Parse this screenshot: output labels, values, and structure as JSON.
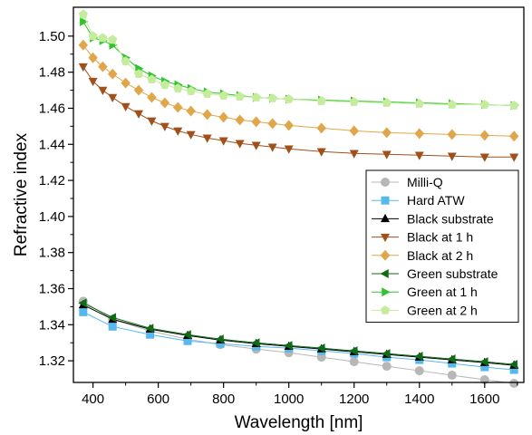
{
  "chart_data": {
    "type": "line",
    "xlabel": "Wavelength [nm]",
    "ylabel": "Refractive index",
    "xlim": [
      340,
      1720
    ],
    "ylim": [
      1.308,
      1.516
    ],
    "xticks": [
      400,
      600,
      800,
      1000,
      1200,
      1400,
      1600
    ],
    "yticks": [
      1.32,
      1.34,
      1.36,
      1.38,
      1.4,
      1.42,
      1.44,
      1.46,
      1.48,
      1.5
    ],
    "tick_format_decimals": 2,
    "legend_position": "right-center",
    "grid": false,
    "series": [
      {
        "name": "Milli-Q",
        "color": "#b7b7b7",
        "marker": "circle",
        "x": [
          370,
          460,
          575,
          690,
          790,
          900,
          1000,
          1100,
          1200,
          1300,
          1400,
          1500,
          1600,
          1690
        ],
        "values": [
          1.353,
          1.343,
          1.3365,
          1.332,
          1.329,
          1.3265,
          1.3245,
          1.322,
          1.3195,
          1.317,
          1.3145,
          1.312,
          1.3095,
          1.3075
        ]
      },
      {
        "name": "Hard ATW",
        "color": "#57b8f0",
        "marker": "square",
        "x": [
          370,
          460,
          575,
          690,
          790,
          900,
          1000,
          1100,
          1200,
          1300,
          1400,
          1500,
          1600,
          1690
        ],
        "values": [
          1.347,
          1.339,
          1.3345,
          1.331,
          1.3295,
          1.328,
          1.327,
          1.3255,
          1.324,
          1.322,
          1.3205,
          1.3185,
          1.3165,
          1.315
        ]
      },
      {
        "name": "Black substrate",
        "color": "#000000",
        "marker": "triangle-up",
        "x": [
          370,
          460,
          575,
          690,
          790,
          900,
          1000,
          1100,
          1200,
          1300,
          1400,
          1500,
          1600,
          1690
        ],
        "values": [
          1.351,
          1.343,
          1.3375,
          1.334,
          1.3315,
          1.3295,
          1.328,
          1.3265,
          1.325,
          1.3235,
          1.322,
          1.3205,
          1.319,
          1.3175
        ]
      },
      {
        "name": "Black at 1 h",
        "color": "#a0501a",
        "marker": "triangle-down",
        "x": [
          370,
          400,
          430,
          460,
          500,
          540,
          580,
          620,
          660,
          700,
          750,
          800,
          850,
          900,
          950,
          1000,
          1100,
          1200,
          1300,
          1400,
          1500,
          1600,
          1690
        ],
        "values": [
          1.483,
          1.475,
          1.47,
          1.466,
          1.461,
          1.457,
          1.453,
          1.45,
          1.4475,
          1.4455,
          1.4435,
          1.442,
          1.4405,
          1.4395,
          1.4385,
          1.4375,
          1.436,
          1.435,
          1.4345,
          1.434,
          1.4335,
          1.433,
          1.433
        ]
      },
      {
        "name": "Black at 2 h",
        "color": "#e0a64a",
        "marker": "diamond",
        "x": [
          370,
          400,
          430,
          460,
          500,
          540,
          580,
          620,
          660,
          700,
          750,
          800,
          850,
          900,
          950,
          1000,
          1100,
          1200,
          1300,
          1400,
          1500,
          1600,
          1690
        ],
        "values": [
          1.495,
          1.488,
          1.483,
          1.479,
          1.474,
          1.47,
          1.466,
          1.463,
          1.4605,
          1.4585,
          1.4565,
          1.455,
          1.4535,
          1.4525,
          1.4515,
          1.4505,
          1.449,
          1.4475,
          1.4465,
          1.446,
          1.4455,
          1.445,
          1.4445
        ]
      },
      {
        "name": "Green substrate",
        "color": "#0f6b14",
        "marker": "triangle-left",
        "x": [
          370,
          460,
          575,
          690,
          790,
          900,
          1000,
          1100,
          1200,
          1300,
          1400,
          1500,
          1600,
          1690
        ],
        "values": [
          1.352,
          1.344,
          1.338,
          1.3345,
          1.332,
          1.33,
          1.3285,
          1.327,
          1.3255,
          1.324,
          1.3225,
          1.321,
          1.3195,
          1.318
        ]
      },
      {
        "name": "Green at 1 h",
        "color": "#2ec42e",
        "marker": "triangle-right",
        "x": [
          370,
          400,
          430,
          460,
          500,
          540,
          580,
          620,
          660,
          700,
          750,
          800,
          850,
          900,
          950,
          1000,
          1100,
          1200,
          1300,
          1400,
          1500,
          1600,
          1690
        ],
        "values": [
          1.508,
          1.499,
          1.4975,
          1.495,
          1.488,
          1.482,
          1.478,
          1.475,
          1.473,
          1.471,
          1.469,
          1.468,
          1.467,
          1.466,
          1.4655,
          1.465,
          1.4645,
          1.464,
          1.4635,
          1.463,
          1.4625,
          1.462,
          1.4615
        ]
      },
      {
        "name": "Green at 2 h",
        "color": "#c4ec9c",
        "marker": "pentagon",
        "x": [
          370,
          400,
          430,
          460,
          500,
          540,
          580,
          620,
          660,
          700,
          750,
          800,
          850,
          900,
          950,
          1000,
          1100,
          1200,
          1300,
          1400,
          1500,
          1600,
          1690
        ],
        "values": [
          1.512,
          1.5,
          1.499,
          1.498,
          1.486,
          1.479,
          1.476,
          1.473,
          1.471,
          1.4695,
          1.468,
          1.467,
          1.4665,
          1.466,
          1.4655,
          1.465,
          1.464,
          1.4635,
          1.463,
          1.4625,
          1.462,
          1.462,
          1.4615
        ]
      }
    ]
  }
}
